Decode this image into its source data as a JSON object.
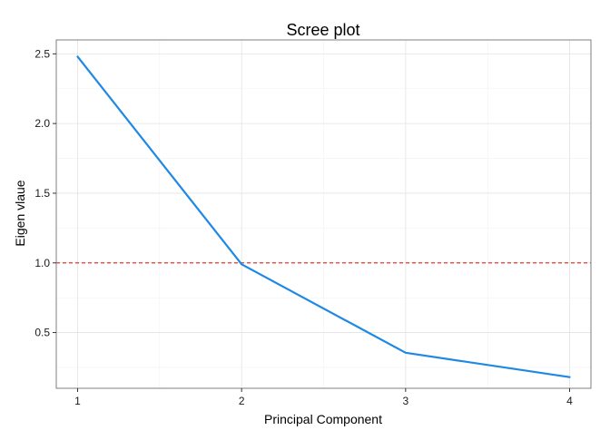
{
  "chart_data": {
    "type": "line",
    "title": "Scree plot",
    "xlabel": "Principal Component",
    "ylabel": "Eigen vlaue",
    "x": [
      1,
      2,
      3,
      4
    ],
    "series": [
      {
        "values": [
          2.48,
          0.99,
          0.355,
          0.18
        ],
        "color": "#1e88e5"
      }
    ],
    "xlim": [
      0.87,
      4.13
    ],
    "ylim": [
      0.1,
      2.6
    ],
    "xticks": [
      1,
      2,
      3,
      4
    ],
    "xtick_labels": [
      "1",
      "2",
      "3",
      "4"
    ],
    "yticks": [
      0.5,
      1.0,
      1.5,
      2.0,
      2.5
    ],
    "ytick_labels": [
      "0.5",
      "1.0",
      "1.5",
      "2.0",
      "2.5"
    ],
    "reference_line": {
      "y": 1.0,
      "color": "#e53935",
      "style": "dashed"
    },
    "grid": true,
    "panel_border": true,
    "legend": "none"
  }
}
